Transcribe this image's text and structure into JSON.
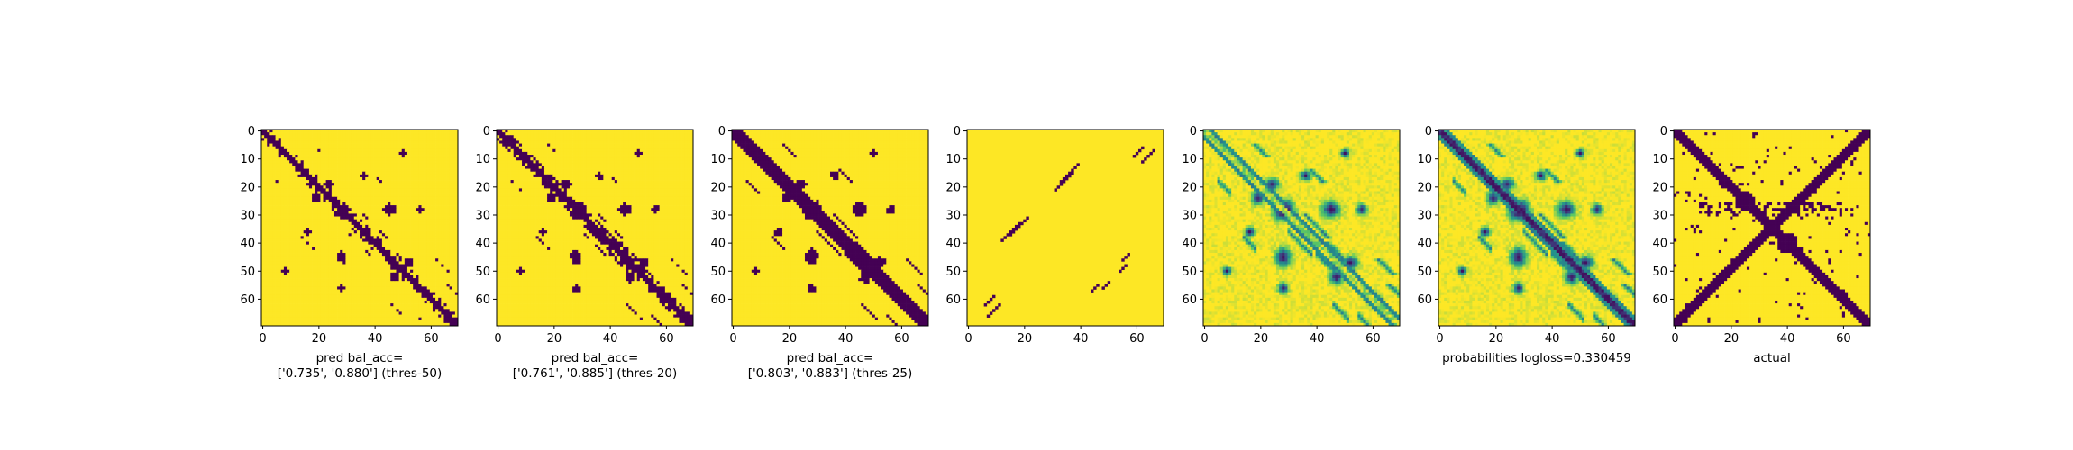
{
  "chart_data": {
    "type": "heatmap",
    "matrix_size": 70,
    "colormap": [
      "#440154",
      "#3b528b",
      "#21918c",
      "#5ec962",
      "#fde725"
    ],
    "x_ticks": [
      0,
      20,
      40,
      60
    ],
    "y_ticks": [
      0,
      10,
      20,
      30,
      40,
      50,
      60
    ],
    "panels": [
      {
        "id": "p1",
        "kind": "binary",
        "variant": "thres50",
        "caption": [
          "pred bal_acc=",
          "['0.735', '0.880'] (thres-50)"
        ]
      },
      {
        "id": "p2",
        "kind": "binary",
        "variant": "thres20",
        "caption": [
          "pred bal_acc=",
          "['0.761', '0.885'] (thres-20)"
        ]
      },
      {
        "id": "p3",
        "kind": "binary",
        "variant": "thres25",
        "caption": [
          "pred bal_acc=",
          "['0.803', '0.883'] (thres-25)"
        ]
      },
      {
        "id": "p4",
        "kind": "binary",
        "variant": "sparse",
        "caption": []
      },
      {
        "id": "p5",
        "kind": "continuous",
        "variant": "probs",
        "caption": []
      },
      {
        "id": "p6",
        "kind": "continuous",
        "variant": "probs_diag",
        "caption": [
          "probabilities logloss=0.330459"
        ]
      },
      {
        "id": "p7",
        "kind": "binary",
        "variant": "actual",
        "caption": [
          "actual"
        ]
      }
    ]
  }
}
